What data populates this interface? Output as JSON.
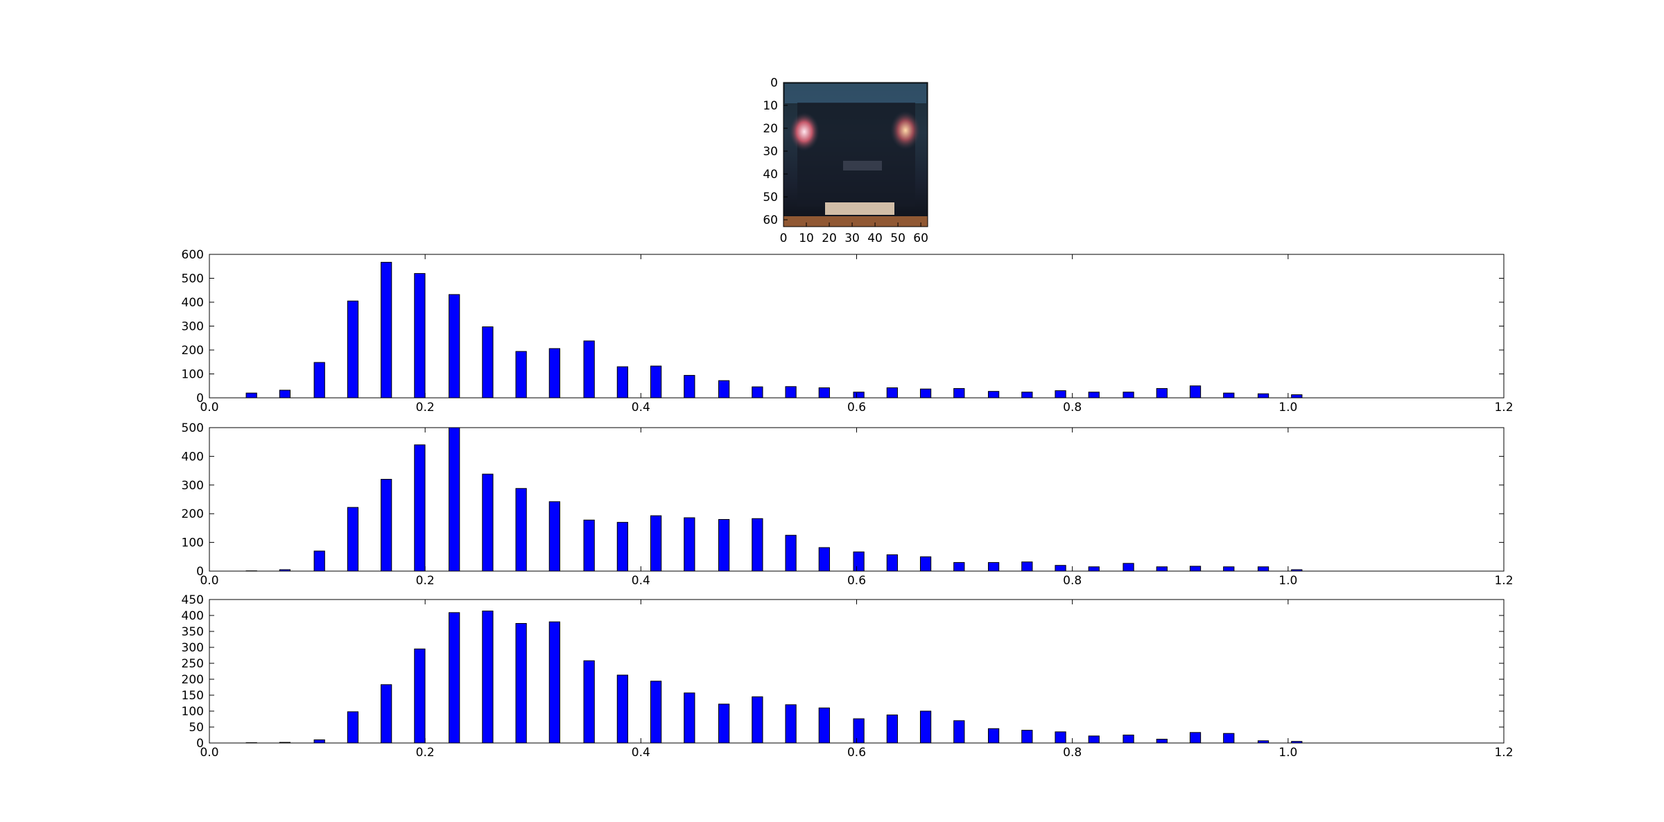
{
  "chart_data": [
    {
      "type": "image",
      "description_kind": "thumbnail",
      "xlim": [
        0,
        63
      ],
      "ylim": [
        63,
        0
      ],
      "xticks": [
        0,
        10,
        20,
        30,
        40,
        50,
        60
      ],
      "yticks": [
        0,
        10,
        20,
        30,
        40,
        50,
        60
      ],
      "xtick_labels": [
        "0",
        "10",
        "20",
        "30",
        "40",
        "50",
        "60"
      ],
      "ytick_labels": [
        "0",
        "10",
        "20",
        "30",
        "40",
        "50",
        "60"
      ]
    },
    {
      "type": "bar",
      "color": "#0000ff",
      "x": [
        0.039,
        0.07,
        0.102,
        0.133,
        0.164,
        0.195,
        0.227,
        0.258,
        0.289,
        0.32,
        0.352,
        0.383,
        0.414,
        0.445,
        0.477,
        0.508,
        0.539,
        0.57,
        0.602,
        0.633,
        0.664,
        0.695,
        0.727,
        0.758,
        0.789,
        0.82,
        0.852,
        0.883,
        0.914,
        0.945,
        0.977,
        1.008
      ],
      "values": [
        20,
        32,
        148,
        405,
        567,
        520,
        432,
        297,
        194,
        206,
        238,
        130,
        133,
        94,
        72,
        46,
        47,
        42,
        24,
        42,
        37,
        39,
        27,
        24,
        30,
        24,
        24,
        39,
        50,
        20,
        17,
        13
      ],
      "bar_width": 0.0098,
      "xlim": [
        0,
        1.2
      ],
      "ylim": [
        0,
        600
      ],
      "xticks": [
        0.0,
        0.2,
        0.4,
        0.6,
        0.8,
        1.0,
        1.2
      ],
      "xtick_labels": [
        "0.0",
        "0.2",
        "0.4",
        "0.6",
        "0.8",
        "1.0",
        "1.2"
      ],
      "yticks": [
        0,
        100,
        200,
        300,
        400,
        500,
        600
      ],
      "ytick_labels": [
        "0",
        "100",
        "200",
        "300",
        "400",
        "500",
        "600"
      ]
    },
    {
      "type": "bar",
      "color": "#0000ff",
      "x": [
        0.039,
        0.07,
        0.102,
        0.133,
        0.164,
        0.195,
        0.227,
        0.258,
        0.289,
        0.32,
        0.352,
        0.383,
        0.414,
        0.445,
        0.477,
        0.508,
        0.539,
        0.57,
        0.602,
        0.633,
        0.664,
        0.695,
        0.727,
        0.758,
        0.789,
        0.82,
        0.852,
        0.883,
        0.914,
        0.945,
        0.977,
        1.008
      ],
      "values": [
        1,
        5,
        70,
        222,
        320,
        440,
        500,
        338,
        288,
        242,
        178,
        170,
        193,
        186,
        180,
        183,
        125,
        82,
        67,
        57,
        50,
        30,
        30,
        32,
        20,
        15,
        27,
        15,
        17,
        15,
        15,
        5
      ],
      "bar_width": 0.0098,
      "xlim": [
        0,
        1.2
      ],
      "ylim": [
        0,
        500
      ],
      "xticks": [
        0.0,
        0.2,
        0.4,
        0.6,
        0.8,
        1.0,
        1.2
      ],
      "xtick_labels": [
        "0.0",
        "0.2",
        "0.4",
        "0.6",
        "0.8",
        "1.0",
        "1.2"
      ],
      "yticks": [
        0,
        100,
        200,
        300,
        400,
        500
      ],
      "ytick_labels": [
        "0",
        "100",
        "200",
        "300",
        "400",
        "500"
      ]
    },
    {
      "type": "bar",
      "color": "#0000ff",
      "x": [
        0.039,
        0.07,
        0.102,
        0.133,
        0.164,
        0.195,
        0.227,
        0.258,
        0.289,
        0.32,
        0.352,
        0.383,
        0.414,
        0.445,
        0.477,
        0.508,
        0.539,
        0.57,
        0.602,
        0.633,
        0.664,
        0.695,
        0.727,
        0.758,
        0.789,
        0.82,
        0.852,
        0.883,
        0.914,
        0.945,
        0.977,
        1.008
      ],
      "values": [
        1,
        2,
        10,
        98,
        183,
        295,
        409,
        414,
        375,
        380,
        258,
        213,
        194,
        157,
        122,
        145,
        120,
        110,
        76,
        88,
        100,
        70,
        45,
        40,
        35,
        22,
        25,
        12,
        33,
        30,
        7,
        5
      ],
      "bar_width": 0.0098,
      "xlim": [
        0,
        1.2
      ],
      "ylim": [
        0,
        450
      ],
      "xticks": [
        0.0,
        0.2,
        0.4,
        0.6,
        0.8,
        1.0,
        1.2
      ],
      "xtick_labels": [
        "0.0",
        "0.2",
        "0.4",
        "0.6",
        "0.8",
        "1.0",
        "1.2"
      ],
      "yticks": [
        0,
        50,
        100,
        150,
        200,
        250,
        300,
        350,
        400,
        450
      ],
      "ytick_labels": [
        "0",
        "50",
        "100",
        "150",
        "200",
        "250",
        "300",
        "350",
        "400",
        "450"
      ]
    }
  ]
}
